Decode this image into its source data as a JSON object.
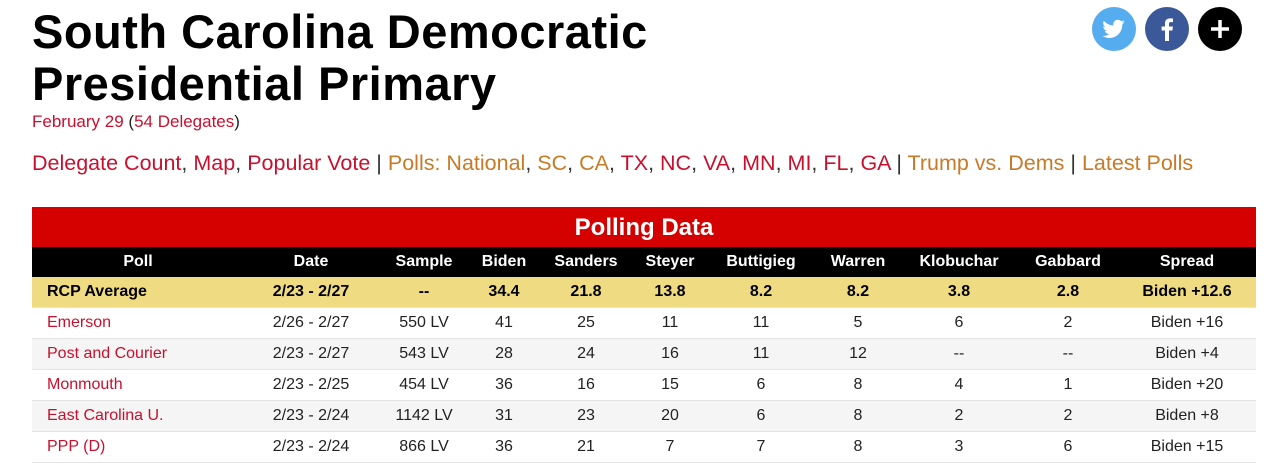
{
  "header": {
    "title": "South Carolina Democratic Presidential Primary",
    "date": "February 29",
    "delegates_open": "(",
    "delegates": "54 Delegates",
    "delegates_close": ")"
  },
  "nav": {
    "item_separator": ",",
    "group_separator": "|",
    "groups": [
      [
        "Delegate Count",
        "Map",
        "Popular Vote"
      ],
      [
        "Polls: National",
        "SC",
        "CA",
        "TX",
        "NC",
        "VA",
        "MN",
        "MI",
        "FL",
        "GA"
      ],
      [
        "Trump vs. Dems"
      ],
      [
        "Latest Polls"
      ]
    ]
  },
  "table": {
    "caption": "Polling Data",
    "columns": [
      "Poll",
      "Date",
      "Sample",
      "Biden",
      "Sanders",
      "Steyer",
      "Buttigieg",
      "Warren",
      "Klobuchar",
      "Gabbard",
      "Spread"
    ],
    "rows": [
      [
        "RCP Average",
        "2/23 - 2/27",
        "--",
        "34.4",
        "21.8",
        "13.8",
        "8.2",
        "8.2",
        "3.8",
        "2.8",
        "Biden +12.6"
      ],
      [
        "Emerson",
        "2/26 - 2/27",
        "550 LV",
        "41",
        "25",
        "11",
        "11",
        "5",
        "6",
        "2",
        "Biden +16"
      ],
      [
        "Post and Courier",
        "2/23 - 2/27",
        "543 LV",
        "28",
        "24",
        "16",
        "11",
        "12",
        "--",
        "--",
        "Biden +4"
      ],
      [
        "Monmouth",
        "2/23 - 2/25",
        "454 LV",
        "36",
        "16",
        "15",
        "6",
        "8",
        "4",
        "1",
        "Biden +20"
      ],
      [
        "East Carolina U.",
        "2/23 - 2/24",
        "1142 LV",
        "31",
        "23",
        "20",
        "6",
        "8",
        "2",
        "2",
        "Biden +8"
      ],
      [
        "PPP (D)",
        "2/23 - 2/24",
        "866 LV",
        "36",
        "21",
        "7",
        "7",
        "8",
        "3",
        "6",
        "Biden +15"
      ]
    ]
  }
}
